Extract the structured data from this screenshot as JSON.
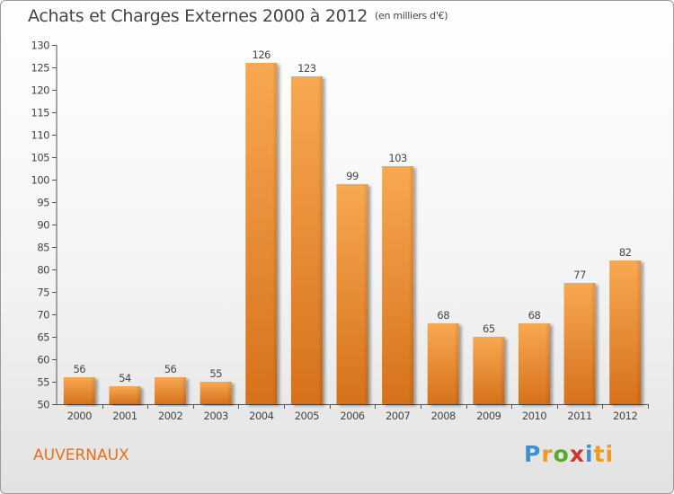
{
  "title": "Achats et Charges Externes 2000 à 2012",
  "subtitle": "(en milliers d'€)",
  "commune": "AUVERNAUX",
  "logo": {
    "letters": [
      "P",
      "r",
      "o",
      "x",
      "i",
      "ti"
    ]
  },
  "colors": {
    "bar_light": "#f7a54f",
    "bar_dark": "#d8731c",
    "axis": "#555555",
    "text": "#454545",
    "accent": "#e8701a"
  },
  "chart_data": {
    "type": "bar",
    "categories": [
      "2000",
      "2001",
      "2002",
      "2003",
      "2004",
      "2005",
      "2006",
      "2007",
      "2008",
      "2009",
      "2010",
      "2011",
      "2012"
    ],
    "values": [
      56,
      54,
      56,
      55,
      126,
      123,
      99,
      103,
      68,
      65,
      68,
      77,
      82
    ],
    "data_labels": [
      "56",
      "54",
      "56",
      "55",
      "126",
      "123",
      "99",
      "103",
      "68",
      "65",
      "68",
      "77",
      "82"
    ],
    "yticks": [
      "50",
      "55",
      "60",
      "65",
      "70",
      "75",
      "80",
      "85",
      "90",
      "95",
      "100",
      "105",
      "110",
      "115",
      "120",
      "125",
      "130"
    ],
    "ylim": [
      50,
      130
    ],
    "grid": false,
    "xlabel": "",
    "ylabel": ""
  }
}
